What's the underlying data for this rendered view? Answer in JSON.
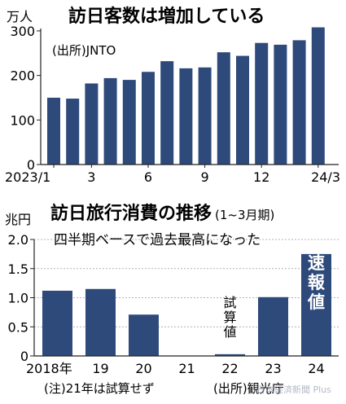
{
  "chart_data": [
    {
      "type": "bar",
      "title": "訪日客数は増加している",
      "unit_label": "万人",
      "source": "(出所)JNTO",
      "categories": [
        "2023/1",
        "2",
        "3",
        "4",
        "5",
        "6",
        "7",
        "8",
        "9",
        "10",
        "11",
        "12",
        "24/1",
        "2",
        "3"
      ],
      "tick_labels": [
        {
          "index": 0,
          "label": "2023/1"
        },
        {
          "index": 2,
          "label": "3"
        },
        {
          "index": 5,
          "label": "6"
        },
        {
          "index": 8,
          "label": "9"
        },
        {
          "index": 11,
          "label": "12"
        },
        {
          "index": 14,
          "label": "24/3"
        }
      ],
      "values": [
        150,
        148,
        182,
        194,
        190,
        208,
        232,
        216,
        218,
        252,
        244,
        273,
        269,
        279,
        308
      ],
      "yticks": [
        "0",
        "100",
        "200",
        "300"
      ],
      "ylim": [
        0,
        320
      ],
      "grid": false,
      "bar_color": "#2e4a7a"
    },
    {
      "type": "bar",
      "title": "訪日旅行消費の推移",
      "title_suffix": "(1~3月期)",
      "subtitle": "四半期ベースで過去最高になった",
      "unit_label": "兆円",
      "categories": [
        "2018年",
        "19",
        "20",
        "21",
        "22",
        "23",
        "24"
      ],
      "values": [
        1.12,
        1.15,
        0.71,
        0,
        0.03,
        1.01,
        1.75
      ],
      "estimated_index": 4,
      "preliminary_index": 6,
      "yticks": [
        "0",
        "0.5",
        "1.0",
        "1.5",
        "2.0"
      ],
      "ylim": [
        0,
        2.0
      ],
      "grid": true,
      "annotation_estimate": "試算値",
      "annotation_preliminary": "速報値",
      "note": "(注)21年は試算せず",
      "source": "(出所)観光庁",
      "bar_color": "#2e4a7a"
    }
  ],
  "watermark": "日本経済新聞 Plus"
}
